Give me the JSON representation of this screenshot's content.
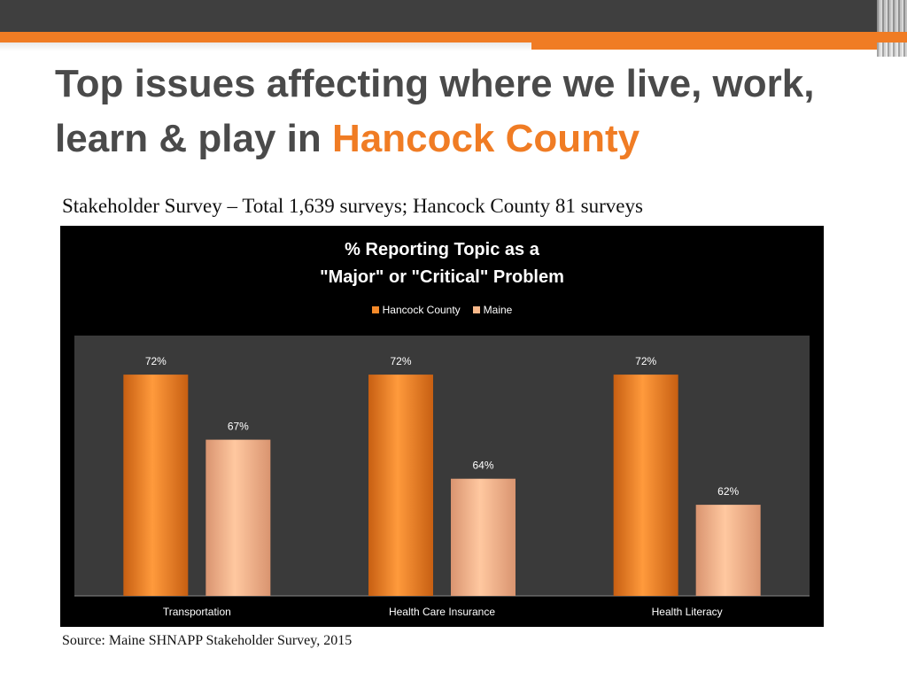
{
  "slide": {
    "title_line1": "Top issues affecting where we live, work,",
    "title_line2_prefix": "learn & play in ",
    "title_highlight": "Hancock County",
    "subtitle": "Stakeholder Survey – Total 1,639 surveys;  Hancock County 81 surveys",
    "source": "Source: Maine SHNAPP Stakeholder Survey, 2015"
  },
  "colors": {
    "accent": "#f07c24",
    "hancock": "#f58a2a",
    "maine": "#f8b88a"
  },
  "chart_data": {
    "type": "bar",
    "title_line1": "% Reporting Topic as a",
    "title_line2": "\"Major\" or \"Critical\" Problem",
    "categories": [
      "Transportation",
      "Health Care Insurance",
      "Health Literacy"
    ],
    "series": [
      {
        "name": "Hancock County",
        "values": [
          72,
          72,
          72
        ],
        "labels": [
          "72%",
          "72%",
          "72%"
        ]
      },
      {
        "name": "Maine",
        "values": [
          67,
          64,
          62
        ],
        "labels": [
          "67%",
          "64%",
          "62%"
        ]
      }
    ],
    "ylim": [
      55,
      75
    ],
    "legend": "top",
    "grid": false
  }
}
